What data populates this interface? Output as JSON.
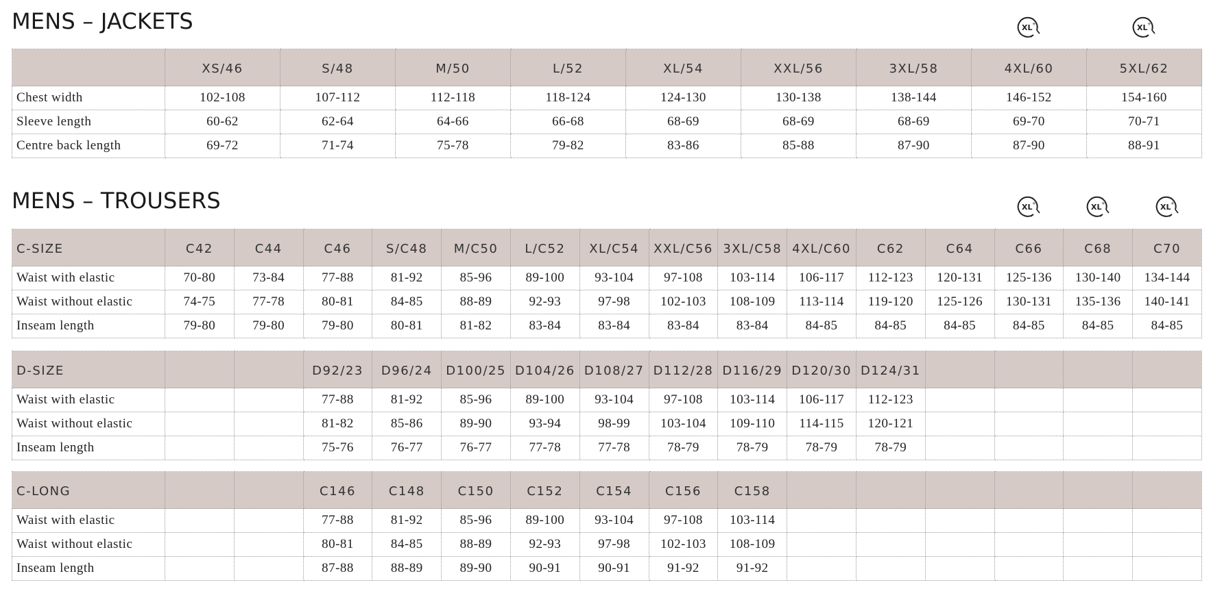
{
  "jackets": {
    "title": "MENS – JACKETS",
    "header": [
      "",
      "XS/46",
      "S/48",
      "M/50",
      "L/52",
      "XL/54",
      "XXL/56",
      "3XL/58",
      "4XL/60",
      "5XL/62"
    ],
    "xl_icon_columns": [
      "4XL/60",
      "5XL/62"
    ],
    "rows": [
      [
        "Chest width",
        "102-108",
        "107-112",
        "112-118",
        "118-124",
        "124-130",
        "130-138",
        "138-144",
        "146-152",
        "154-160"
      ],
      [
        "Sleeve length",
        "60-62",
        "62-64",
        "64-66",
        "66-68",
        "68-69",
        "68-69",
        "68-69",
        "69-70",
        "70-71"
      ],
      [
        "Centre back length",
        "69-72",
        "71-74",
        "75-78",
        "79-82",
        "83-86",
        "85-88",
        "87-90",
        "87-90",
        "88-91"
      ]
    ]
  },
  "trousers": {
    "title": "MENS – TROUSERS",
    "xl_icon_columns": [
      "C66",
      "C68",
      "C70"
    ],
    "tables": [
      {
        "header": [
          "C-SIZE",
          "C42",
          "C44",
          "C46",
          "S/C48",
          "M/C50",
          "L/C52",
          "XL/C54",
          "XXL/C56",
          "3XL/C58",
          "4XL/C60",
          "C62",
          "C64",
          "C66",
          "C68",
          "C70"
        ],
        "rows": [
          [
            "Waist with elastic",
            "70-80",
            "73-84",
            "77-88",
            "81-92",
            "85-96",
            "89-100",
            "93-104",
            "97-108",
            "103-114",
            "106-117",
            "112-123",
            "120-131",
            "125-136",
            "130-140",
            "134-144"
          ],
          [
            "Waist without elastic",
            "74-75",
            "77-78",
            "80-81",
            "84-85",
            "88-89",
            "92-93",
            "97-98",
            "102-103",
            "108-109",
            "113-114",
            "119-120",
            "125-126",
            "130-131",
            "135-136",
            "140-141"
          ],
          [
            "Inseam length",
            "79-80",
            "79-80",
            "79-80",
            "80-81",
            "81-82",
            "83-84",
            "83-84",
            "83-84",
            "83-84",
            "84-85",
            "84-85",
            "84-85",
            "84-85",
            "84-85",
            "84-85"
          ]
        ]
      },
      {
        "header": [
          "D-SIZE",
          "",
          "",
          "D92/23",
          "D96/24",
          "D100/25",
          "D104/26",
          "D108/27",
          "D112/28",
          "D116/29",
          "D120/30",
          "D124/31",
          "",
          "",
          "",
          ""
        ],
        "rows": [
          [
            "Waist with elastic",
            "",
            "",
            "77-88",
            "81-92",
            "85-96",
            "89-100",
            "93-104",
            "97-108",
            "103-114",
            "106-117",
            "112-123",
            "",
            "",
            "",
            ""
          ],
          [
            "Waist without elastic",
            "",
            "",
            "81-82",
            "85-86",
            "89-90",
            "93-94",
            "98-99",
            "103-104",
            "109-110",
            "114-115",
            "120-121",
            "",
            "",
            "",
            ""
          ],
          [
            "Inseam length",
            "",
            "",
            "75-76",
            "76-77",
            "76-77",
            "77-78",
            "77-78",
            "78-79",
            "78-79",
            "78-79",
            "78-79",
            "",
            "",
            "",
            ""
          ]
        ]
      },
      {
        "header": [
          "C-LONG",
          "",
          "",
          "C146",
          "C148",
          "C150",
          "C152",
          "C154",
          "C156",
          "C158",
          "",
          "",
          "",
          "",
          "",
          ""
        ],
        "rows": [
          [
            "Waist with elastic",
            "",
            "",
            "77-88",
            "81-92",
            "85-96",
            "89-100",
            "93-104",
            "97-108",
            "103-114",
            "",
            "",
            "",
            "",
            "",
            ""
          ],
          [
            "Waist without elastic",
            "",
            "",
            "80-81",
            "84-85",
            "88-89",
            "92-93",
            "97-98",
            "102-103",
            "108-109",
            "",
            "",
            "",
            "",
            "",
            ""
          ],
          [
            "Inseam length",
            "",
            "",
            "87-88",
            "88-89",
            "89-90",
            "90-91",
            "90-91",
            "91-92",
            "91-92",
            "",
            "",
            "",
            "",
            "",
            ""
          ]
        ]
      }
    ]
  },
  "colors": {
    "header_bg": "#d5cac6",
    "text": "#222222"
  },
  "icons": {
    "xl": "xl-plus-size-icon"
  }
}
